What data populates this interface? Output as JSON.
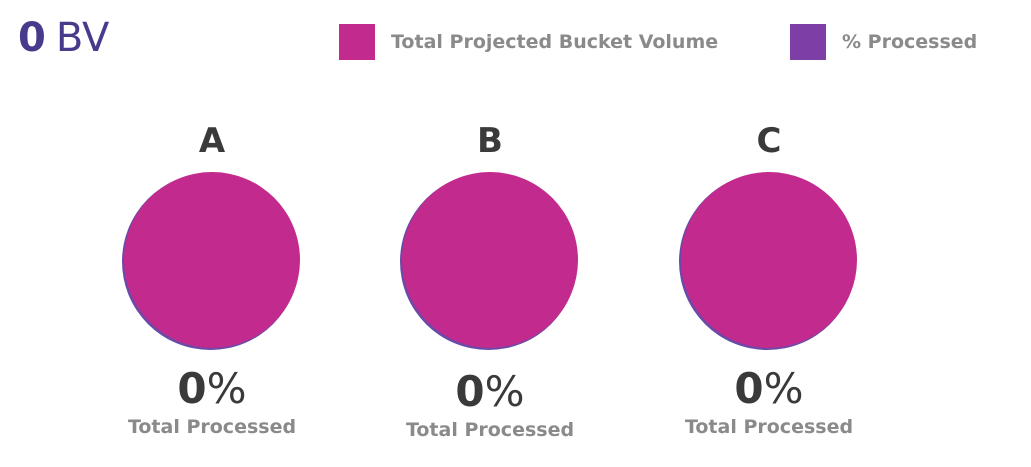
{
  "header": {
    "bv_value": "0",
    "bv_unit": "BV"
  },
  "legend": [
    {
      "label": "Total Projected Bucket Volume",
      "color": "#c22a8e"
    },
    {
      "label": "% Processed",
      "color": "#7d3ea6"
    }
  ],
  "chart_data": [
    {
      "type": "pie",
      "title": "A",
      "values": [
        100,
        0
      ],
      "labels": [
        "Total Projected Bucket Volume",
        "% Processed"
      ],
      "percent_processed": "0",
      "percent_sign": "%",
      "caption": "Total Processed"
    },
    {
      "type": "pie",
      "title": "B",
      "values": [
        100,
        0
      ],
      "labels": [
        "Total Projected Bucket Volume",
        "% Processed"
      ],
      "percent_processed": "0",
      "percent_sign": "%",
      "caption": "Total Processed"
    },
    {
      "type": "pie",
      "title": "C",
      "values": [
        100,
        0
      ],
      "labels": [
        "Total Projected Bucket Volume",
        "% Processed"
      ],
      "percent_processed": "0",
      "percent_sign": "%",
      "caption": "Total Processed"
    }
  ]
}
